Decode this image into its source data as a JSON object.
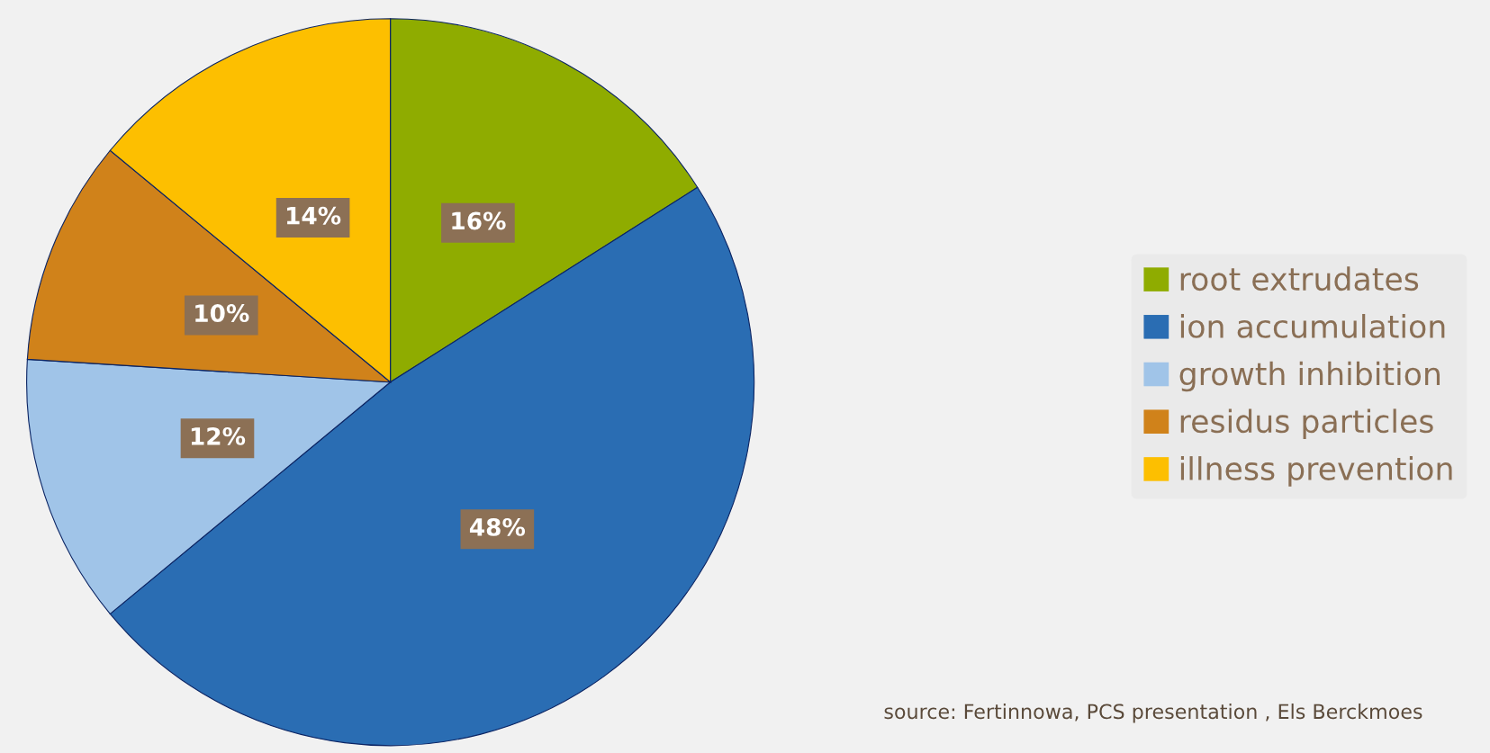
{
  "chart_data": {
    "type": "pie",
    "categories": [
      "root extrudates",
      "ion accumulation",
      "growth inhibition",
      "residus particles",
      "illness prevention"
    ],
    "values": [
      16,
      48,
      12,
      10,
      14
    ],
    "colors": [
      "#8fac00",
      "#2a6db3",
      "#a0c4e8",
      "#d0821a",
      "#fdbf00"
    ],
    "value_labels": [
      "16%",
      "48%",
      "12%",
      "10%",
      "14%"
    ],
    "legend": "right",
    "annotations": [
      "source: Fertinnowa, PCS presentation , Els Berckmoes"
    ]
  }
}
